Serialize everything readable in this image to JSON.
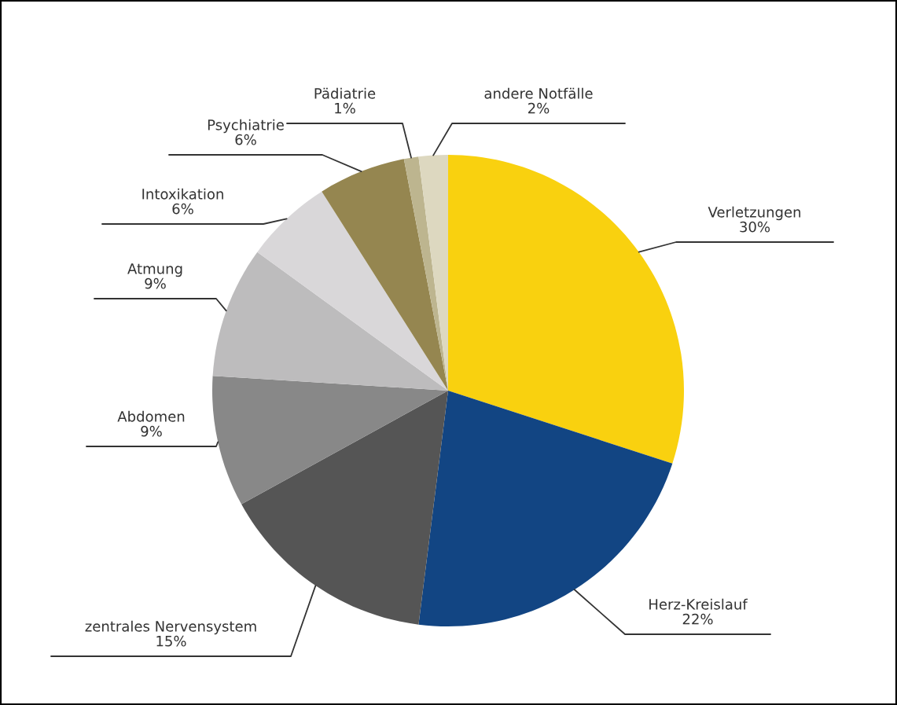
{
  "chart_data": {
    "type": "pie",
    "categories": [
      "Verletzungen",
      "Herz-Kreislauf",
      "zentrales Nervensystem",
      "Abdomen",
      "Atmung",
      "Intoxikation",
      "Psychiatrie",
      "Pädiatrie",
      "andere Notfälle"
    ],
    "values": [
      30,
      22,
      15,
      9,
      9,
      6,
      6,
      1,
      2
    ],
    "value_labels": [
      "30%",
      "22%",
      "15%",
      "9%",
      "9%",
      "6%",
      "6%",
      "1%",
      "2%"
    ],
    "colors": [
      "#f9d10f",
      "#124583",
      "#555555",
      "#888888",
      "#bdbcbd",
      "#d9d7d9",
      "#958650",
      "#bdb58f",
      "#ddd8c0"
    ]
  }
}
